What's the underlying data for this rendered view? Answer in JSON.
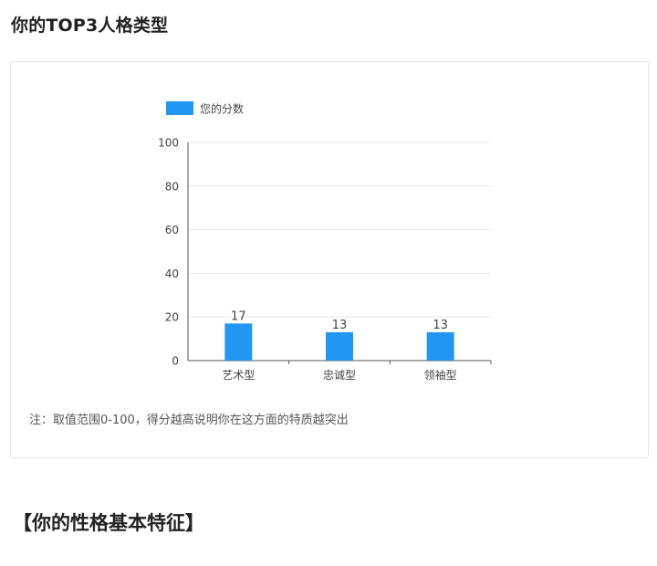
{
  "page": {
    "title": "你的TOP3人格类型",
    "note": "注：取值范围0-100，得分越高说明你在这方面的特质越突出",
    "traits_heading": "【你的性格基本特征】"
  },
  "colors": {
    "bar": "#2196F3",
    "axis": "#555555",
    "grid": "#e8e8e8",
    "label": "#444444"
  },
  "chart_data": {
    "type": "bar",
    "categories": [
      "艺术型",
      "忠诚型",
      "领袖型"
    ],
    "series": [
      {
        "name": "您的分数",
        "values": [
          17,
          13,
          13
        ]
      }
    ],
    "ylim": [
      0,
      100
    ],
    "yticks": [
      0,
      20,
      40,
      60,
      80,
      100
    ],
    "grid": true,
    "legend": "top-left",
    "data_labels": true
  }
}
